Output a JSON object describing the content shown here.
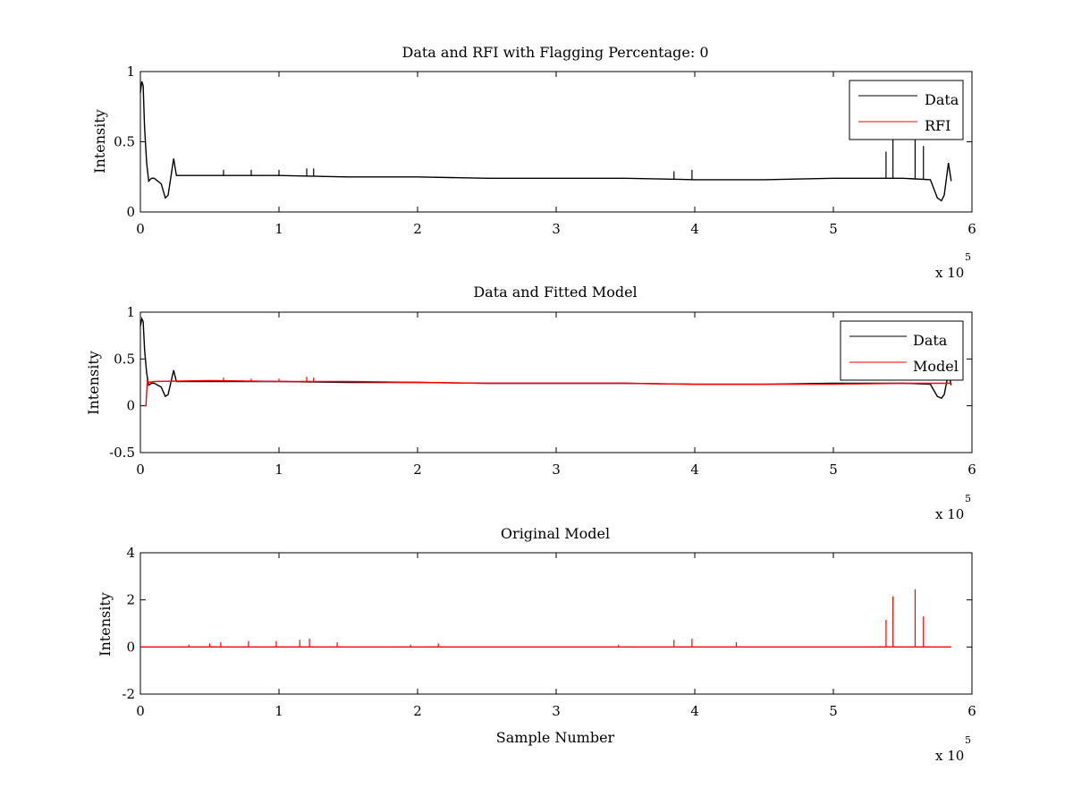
{
  "chart_data": [
    {
      "type": "line",
      "title": "Data and RFI with Flagging Percentage: 0",
      "xlabel": "",
      "ylabel": "Intensity",
      "xlim": [
        0,
        6
      ],
      "ylim": [
        0,
        1
      ],
      "x_unit_multiplier": "x 10",
      "x_unit_exponent": "5",
      "xticks": [
        "0",
        "1",
        "2",
        "3",
        "4",
        "5",
        "6"
      ],
      "yticks": [
        "0",
        "0.5",
        "1"
      ],
      "legend_position": "top-right",
      "series": [
        {
          "name": "Data",
          "color": "#000000",
          "x": [
            0.0,
            0.01,
            0.02,
            0.03,
            0.045,
            0.06,
            0.08,
            0.1,
            0.15,
            0.18,
            0.2,
            0.22,
            0.24,
            0.26,
            0.5,
            1.0,
            1.5,
            2.0,
            2.5,
            3.0,
            3.5,
            4.0,
            4.5,
            5.0,
            5.5,
            5.7,
            5.75,
            5.78,
            5.8,
            5.83,
            5.85
          ],
          "y": [
            0.85,
            0.93,
            0.9,
            0.6,
            0.35,
            0.22,
            0.24,
            0.24,
            0.2,
            0.1,
            0.12,
            0.25,
            0.38,
            0.26,
            0.26,
            0.26,
            0.25,
            0.25,
            0.24,
            0.24,
            0.24,
            0.23,
            0.23,
            0.24,
            0.24,
            0.23,
            0.1,
            0.08,
            0.12,
            0.35,
            0.22
          ],
          "spikes": [
            {
              "x": 0.6,
              "y": 0.3
            },
            {
              "x": 0.8,
              "y": 0.3
            },
            {
              "x": 1.0,
              "y": 0.3
            },
            {
              "x": 1.2,
              "y": 0.31
            },
            {
              "x": 1.25,
              "y": 0.31
            },
            {
              "x": 3.85,
              "y": 0.29
            },
            {
              "x": 3.98,
              "y": 0.3
            },
            {
              "x": 5.38,
              "y": 0.43
            },
            {
              "x": 5.43,
              "y": 0.52
            },
            {
              "x": 5.59,
              "y": 0.52
            },
            {
              "x": 5.65,
              "y": 0.47
            }
          ]
        },
        {
          "name": "RFI",
          "color": "#ff0000",
          "x": [],
          "y": []
        }
      ]
    },
    {
      "type": "line",
      "title": "Data and Fitted Model",
      "xlabel": "",
      "ylabel": "Intensity",
      "xlim": [
        0,
        6
      ],
      "ylim": [
        -0.5,
        1
      ],
      "x_unit_multiplier": "x 10",
      "x_unit_exponent": "5",
      "xticks": [
        "0",
        "1",
        "2",
        "3",
        "4",
        "5",
        "6"
      ],
      "yticks": [
        "-0.5",
        "0",
        "0.5",
        "1"
      ],
      "legend_position": "top-right",
      "series": [
        {
          "name": "Data",
          "color": "#000000",
          "x": [
            0.0,
            0.01,
            0.02,
            0.03,
            0.045,
            0.06,
            0.08,
            0.1,
            0.15,
            0.18,
            0.2,
            0.22,
            0.24,
            0.26,
            0.5,
            1.0,
            1.5,
            2.0,
            2.5,
            3.0,
            3.5,
            4.0,
            4.5,
            5.0,
            5.5,
            5.7,
            5.75,
            5.78,
            5.8,
            5.83,
            5.85
          ],
          "y": [
            0.85,
            0.93,
            0.9,
            0.6,
            0.35,
            0.22,
            0.24,
            0.24,
            0.2,
            0.1,
            0.12,
            0.25,
            0.38,
            0.26,
            0.26,
            0.26,
            0.25,
            0.25,
            0.24,
            0.24,
            0.24,
            0.23,
            0.23,
            0.24,
            0.24,
            0.23,
            0.1,
            0.08,
            0.12,
            0.35,
            0.22
          ]
        },
        {
          "name": "Model",
          "color": "#ff0000",
          "x": [
            0.03,
            0.04,
            0.05,
            0.06,
            0.1,
            0.5,
            1.0,
            1.5,
            2.0,
            2.5,
            3.0,
            3.5,
            4.0,
            4.5,
            5.0,
            5.5,
            5.85
          ],
          "y": [
            0.0,
            0.0,
            0.27,
            0.25,
            0.26,
            0.27,
            0.26,
            0.26,
            0.25,
            0.24,
            0.24,
            0.24,
            0.23,
            0.23,
            0.23,
            0.24,
            0.24
          ],
          "spikes": [
            {
              "x": 0.6,
              "y": 0.3
            },
            {
              "x": 0.8,
              "y": 0.29
            },
            {
              "x": 1.0,
              "y": 0.29
            },
            {
              "x": 1.2,
              "y": 0.31
            },
            {
              "x": 1.25,
              "y": 0.3
            }
          ]
        }
      ]
    },
    {
      "type": "line",
      "title": "Original Model",
      "xlabel": "Sample Number",
      "ylabel": "Intensity",
      "xlim": [
        0,
        6
      ],
      "ylim": [
        -2,
        4
      ],
      "x_unit_multiplier": "x 10",
      "x_unit_exponent": "5",
      "xticks": [
        "0",
        "1",
        "2",
        "3",
        "4",
        "5",
        "6"
      ],
      "yticks": [
        "-2",
        "0",
        "2",
        "4"
      ],
      "series": [
        {
          "color": "#ff0000",
          "x": [
            0.0,
            5.85
          ],
          "y": [
            0.0,
            0.0
          ],
          "spikes": [
            {
              "x": 0.35,
              "y": 0.1
            },
            {
              "x": 0.5,
              "y": 0.15
            },
            {
              "x": 0.58,
              "y": 0.2
            },
            {
              "x": 0.78,
              "y": 0.25
            },
            {
              "x": 0.98,
              "y": 0.25
            },
            {
              "x": 1.15,
              "y": 0.3
            },
            {
              "x": 1.22,
              "y": 0.35
            },
            {
              "x": 1.42,
              "y": 0.2
            },
            {
              "x": 1.95,
              "y": 0.1
            },
            {
              "x": 2.15,
              "y": 0.15
            },
            {
              "x": 3.45,
              "y": 0.1
            },
            {
              "x": 3.85,
              "y": 0.3
            },
            {
              "x": 3.98,
              "y": 0.35
            },
            {
              "x": 4.3,
              "y": 0.2
            },
            {
              "x": 5.38,
              "y": 1.15
            },
            {
              "x": 5.43,
              "y": 2.15
            },
            {
              "x": 5.59,
              "y": 2.45
            },
            {
              "x": 5.65,
              "y": 1.3
            }
          ]
        }
      ]
    }
  ]
}
